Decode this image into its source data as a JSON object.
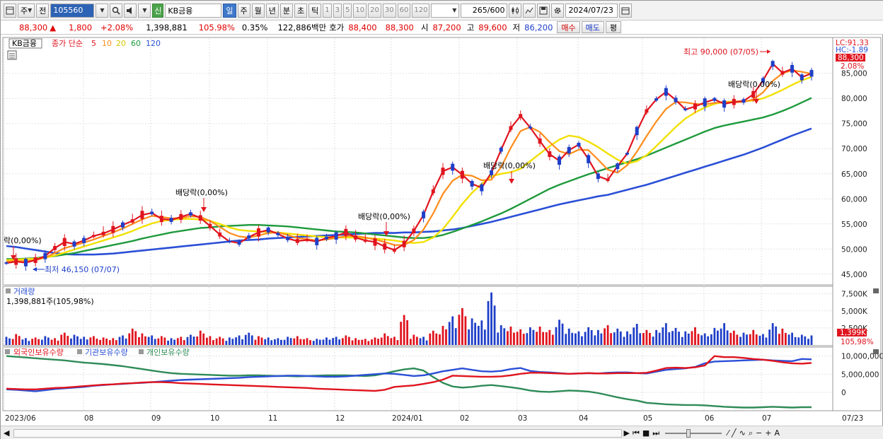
{
  "toolbar": {
    "period_type": "주",
    "prev_label": "전",
    "stock_code": "105560",
    "signal_badge": "신",
    "stock_name": "KB금융",
    "periods": [
      "일",
      "주",
      "월",
      "년",
      "분",
      "초",
      "틱"
    ],
    "active_period": "일",
    "intervals": [
      "1",
      "3",
      "5",
      "10",
      "20",
      "30",
      "60",
      "120"
    ],
    "count_value": "265",
    "count_max": "/600",
    "date_value": "2024/07/23"
  },
  "quote": {
    "price": "88,300",
    "change_arrow": "▲",
    "change": "1,800",
    "change_pct": "+2.08%",
    "volume": "1,398,881",
    "vol_ratio": "105.98%",
    "turnover_pct": "0.35%",
    "amount": "122,886백만",
    "hoga_label": "호가",
    "ask": "88,400",
    "bid": "88,300",
    "open_label": "시",
    "open": "87,200",
    "high_label": "고",
    "high": "89,600",
    "low_label": "저",
    "low": "86,200",
    "buy_button": "매수",
    "sell_button": "매도",
    "eval_button": "평"
  },
  "price_pane": {
    "legend_box": "KB금융",
    "legend_series": "종가 단순",
    "ma_legend": [
      {
        "label": "5",
        "color": "#e0141e"
      },
      {
        "label": "10",
        "color": "#ff8c1a"
      },
      {
        "label": "20",
        "color": "#f2e000"
      },
      {
        "label": "60",
        "color": "#1e9a3c"
      },
      {
        "label": "120",
        "color": "#2a4fd6"
      }
    ],
    "lc_label": "LC:91,33",
    "hc_label": "HC:-1.89",
    "last_price_tag": "88,300",
    "last_pct_tag": "2.08%",
    "y_ticks": [
      "85,000",
      "80,000",
      "75,000",
      "70,000",
      "65,000",
      "60,000",
      "55,000",
      "50,000",
      "45,000"
    ],
    "high_annotation": "최고 90,000 (07/05)",
    "low_annotation": "최저 46,150 (07/07)",
    "dividend_labels": [
      {
        "text": "락(0,00%)"
      },
      {
        "text": "배당락(0,00%)"
      },
      {
        "text": "배당락(0,00%)"
      },
      {
        "text": "배당락(0,00%)"
      },
      {
        "text": "배당락(0,00%)"
      }
    ]
  },
  "volume_pane": {
    "title": "거래량",
    "value_label": "1,398,881주(105,98%)",
    "y_ticks": [
      "7,500K",
      "5,000K",
      "2,500K"
    ],
    "last_tag": "1,399K",
    "last_pct_tag": "105,98%"
  },
  "holding_pane": {
    "legend": [
      {
        "label": "외국인보유수량",
        "color": "#e0141e"
      },
      {
        "label": "기관보유수량",
        "color": "#2a4fd6"
      },
      {
        "label": "개인보유수량",
        "color": "#2e8b57"
      }
    ],
    "y_ticks": [
      "10,000,000",
      "5,000,000",
      "0"
    ]
  },
  "x_axis": {
    "labels": [
      "2023/06",
      "08",
      "09",
      "10",
      "11",
      "12",
      "2024/01",
      "02",
      "03",
      "04",
      "05",
      "06",
      "07",
      "07/23"
    ]
  },
  "chart_data": {
    "type": "candlestick",
    "x_range": [
      "2023/06",
      "2024/07/23"
    ],
    "ylim": [
      43000,
      92000
    ],
    "ma5": [
      47200,
      47500,
      47300,
      47800,
      48600,
      50200,
      51400,
      51000,
      51700,
      52600,
      53100,
      53900,
      54800,
      55600,
      56800,
      57200,
      56000,
      55800,
      56400,
      57000,
      56200,
      54600,
      52900,
      51500,
      51200,
      52400,
      53300,
      53800,
      53000,
      52100,
      51600,
      51800,
      51500,
      52200,
      52600,
      53300,
      52300,
      51700,
      51400,
      50500,
      49800,
      51000,
      53600,
      56800,
      61500,
      65500,
      66300,
      64800,
      63000,
      62200,
      65200,
      69800,
      74100,
      76500,
      74200,
      71500,
      68900,
      67600,
      69700,
      70800,
      67900,
      64500,
      63800,
      66500,
      69000,
      73500,
      77500,
      79800,
      81300,
      79700,
      77800,
      78400,
      79200,
      79800,
      78900,
      79300,
      79500,
      80800,
      83600,
      86900,
      85100,
      85900,
      84200,
      85000
    ],
    "ma10": [
      47500,
      47600,
      47600,
      47800,
      48300,
      49200,
      50200,
      50700,
      51300,
      51900,
      52600,
      53300,
      54100,
      55000,
      55900,
      56600,
      56400,
      56100,
      56200,
      56500,
      56400,
      55600,
      54400,
      53200,
      52500,
      52300,
      52700,
      53200,
      53300,
      52800,
      52200,
      52000,
      51700,
      51900,
      52200,
      52600,
      52600,
      52300,
      51900,
      51400,
      50800,
      50800,
      51800,
      53900,
      57100,
      61000,
      63600,
      64800,
      64600,
      63700,
      63800,
      66300,
      70200,
      73500,
      74300,
      73300,
      71300,
      69500,
      68900,
      69800,
      69700,
      67800,
      65800,
      65200,
      66700,
      69400,
      72500,
      75400,
      77900,
      79300,
      79200,
      78900,
      78800,
      79100,
      79300,
      79200,
      79300,
      79800,
      81200,
      83500,
      85000,
      85600,
      85300,
      84900
    ],
    "ma20": [
      47800,
      47900,
      48000,
      48100,
      48300,
      48700,
      49300,
      49900,
      50500,
      51100,
      51700,
      52300,
      52900,
      53600,
      54400,
      55100,
      55600,
      55800,
      56000,
      56000,
      55900,
      55600,
      55000,
      54300,
      53800,
      53600,
      53500,
      53400,
      53300,
      53100,
      52900,
      52700,
      52500,
      52400,
      52300,
      52300,
      52300,
      52200,
      52100,
      51900,
      51700,
      51400,
      51200,
      51400,
      52300,
      54000,
      56400,
      59000,
      61200,
      63000,
      64500,
      65000,
      65300,
      66000,
      67500,
      69000,
      70500,
      71800,
      72600,
      72300,
      71400,
      70300,
      69000,
      67800,
      67000,
      67500,
      68700,
      70500,
      72400,
      74300,
      76000,
      77200,
      78200,
      78900,
      79300,
      79400,
      79400,
      79600,
      80000,
      80800,
      81700,
      82700,
      83600,
      84300
    ],
    "ma60": [
      48000,
      48000,
      48100,
      48200,
      48400,
      48600,
      48900,
      49200,
      49600,
      50000,
      50400,
      50800,
      51200,
      51600,
      52100,
      52500,
      52900,
      53300,
      53600,
      53900,
      54200,
      54300,
      54500,
      54600,
      54700,
      54800,
      54800,
      54700,
      54600,
      54500,
      54300,
      54100,
      53900,
      53700,
      53500,
      53400,
      53300,
      53100,
      52900,
      52700,
      52500,
      52300,
      52200,
      52200,
      52400,
      52800,
      53400,
      54100,
      54800,
      55500,
      56300,
      57100,
      58000,
      59000,
      60000,
      61000,
      62000,
      62800,
      63500,
      64200,
      64900,
      65500,
      66100,
      66700,
      67300,
      67900,
      68600,
      69400,
      70200,
      71000,
      71800,
      72600,
      73400,
      74100,
      74600,
      75000,
      75400,
      75800,
      76200,
      76800,
      77500,
      78300,
      79200,
      80100
    ],
    "ma120": [
      50600,
      50400,
      50100,
      49800,
      49500,
      49200,
      49000,
      48900,
      48900,
      48900,
      49000,
      49100,
      49300,
      49500,
      49700,
      49900,
      50100,
      50300,
      50500,
      50700,
      50900,
      51100,
      51300,
      51500,
      51700,
      51800,
      51900,
      52100,
      52200,
      52300,
      52400,
      52500,
      52600,
      52700,
      52800,
      52900,
      53000,
      53100,
      53200,
      53200,
      53200,
      53300,
      53300,
      53400,
      53500,
      53700,
      53900,
      54200,
      54600,
      55000,
      55400,
      55900,
      56400,
      56900,
      57400,
      57900,
      58400,
      58900,
      59300,
      59700,
      60100,
      60500,
      60800,
      61300,
      61800,
      62300,
      62800,
      63400,
      64000,
      64600,
      65200,
      65800,
      66400,
      67000,
      67600,
      68200,
      68800,
      69500,
      70200,
      71000,
      71800,
      72600,
      73300,
      74000
    ],
    "volume_k": [
      1200,
      1600,
      1000,
      1100,
      1300,
      1000,
      1800,
      1500,
      1200,
      1300,
      1100,
      1000,
      1400,
      2400,
      1700,
      1400,
      1300,
      1000,
      1200,
      1500,
      2100,
      1300,
      1200,
      1100,
      1400,
      1800,
      1300,
      1100,
      1000,
      1200,
      1300,
      1000,
      900,
      1100,
      1200,
      1400,
      1000,
      900,
      1100,
      1700,
      1200,
      4400,
      1500,
      1200,
      2100,
      2800,
      4200,
      5400,
      3900,
      3600,
      7700,
      2900,
      2700,
      2300,
      2600,
      2700,
      2200,
      3700,
      2400,
      2000,
      2600,
      2200,
      2900,
      2400,
      2000,
      3100,
      2200,
      2200,
      3200,
      2500,
      2000,
      2600,
      1700,
      2500,
      3200,
      2100,
      1800,
      2200,
      1600,
      3200,
      2400,
      1800,
      1500,
      1400
    ],
    "foreign_holding": [
      1000000,
      900000,
      800000,
      800000,
      1000000,
      1200000,
      1300000,
      1500000,
      1700000,
      1900000,
      2100000,
      2200000,
      2400000,
      2500000,
      2700000,
      2800000,
      2800000,
      2700000,
      2500000,
      2400000,
      2300000,
      2200000,
      2100000,
      2000000,
      1900000,
      1800000,
      1700000,
      1600000,
      1500000,
      1400000,
      1300000,
      1200000,
      1000000,
      900000,
      800000,
      700000,
      600000,
      500000,
      400000,
      700000,
      1500000,
      1700000,
      1900000,
      2300000,
      2800000,
      3500000,
      4600000,
      4500000,
      4400000,
      4300000,
      4300000,
      4400000,
      4700000,
      5100000,
      5400000,
      5400000,
      5300000,
      5200000,
      5100000,
      5200000,
      5300000,
      5200000,
      5200000,
      5300000,
      5300000,
      5300000,
      5400000,
      6000000,
      6700000,
      6800000,
      6700000,
      6900000,
      7400000,
      10000000,
      9700000,
      9700000,
      9500000,
      9200000,
      9000000,
      8700000,
      8300000,
      8000000,
      7900000,
      8100000
    ],
    "institution_holding": [
      800000,
      700000,
      500000,
      300000,
      600000,
      900000,
      1100000,
      1300000,
      1500000,
      1800000,
      2000000,
      2200000,
      2300000,
      2500000,
      2600000,
      2800000,
      3000000,
      3200000,
      3400000,
      3500000,
      3600000,
      3700000,
      3800000,
      3900000,
      4000000,
      4200000,
      4300000,
      4400000,
      4500000,
      4600000,
      4600000,
      4500000,
      4400000,
      4300000,
      4300000,
      4400000,
      4600000,
      4800000,
      5000000,
      5200000,
      5100000,
      4800000,
      4500000,
      4700000,
      5200000,
      5800000,
      6200000,
      6600000,
      6200000,
      5800000,
      5700000,
      5900000,
      6400000,
      6700000,
      5900000,
      5600000,
      5500000,
      5300000,
      5100000,
      5200000,
      5300000,
      5200000,
      5400000,
      5500000,
      5500000,
      5300000,
      5200000,
      5700000,
      6200000,
      6400000,
      6600000,
      7000000,
      8000000,
      8500000,
      8600000,
      8700000,
      8800000,
      8900000,
      9000000,
      8800000,
      8700000,
      8600000,
      9200000,
      9100000
    ],
    "individual_holding": [
      10000000,
      9800000,
      9600000,
      9400000,
      9200000,
      9000000,
      8800000,
      8500000,
      8200000,
      8000000,
      7800000,
      7500000,
      7200000,
      6800000,
      6400000,
      6000000,
      5600000,
      5300000,
      5100000,
      5000000,
      4900000,
      4800000,
      4700000,
      4600000,
      4600000,
      4700000,
      4700000,
      4600000,
      4500000,
      4500000,
      4400000,
      4500000,
      4600000,
      4700000,
      4700000,
      4700000,
      4600000,
      4500000,
      4700000,
      5200000,
      5800000,
      6300000,
      6600000,
      6000000,
      4200000,
      2600000,
      1600000,
      1300000,
      1500000,
      1800000,
      2000000,
      1700000,
      1400000,
      1000000,
      500000,
      200000,
      100000,
      300000,
      500000,
      400000,
      200000,
      -200000,
      -800000,
      -1400000,
      -1900000,
      -2300000,
      -2900000,
      -3100000,
      -3300000,
      -3400000,
      -3500000,
      -3500000,
      -3600000,
      -3800000,
      -4000000,
      -4100000,
      -4200000,
      -4200000,
      -4100000,
      -4000000,
      -4100000,
      -4200000,
      -4100000,
      -4100000
    ]
  }
}
